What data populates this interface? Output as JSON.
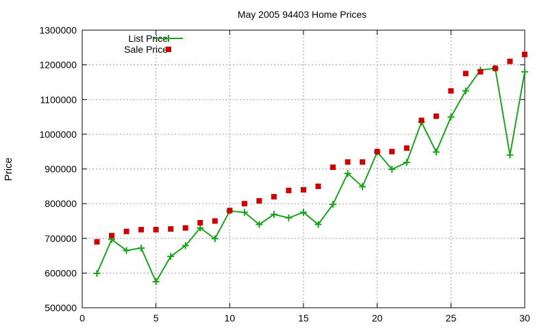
{
  "chart_data": {
    "type": "line",
    "title": "May 2005 94403 Home Prices",
    "ylabel": "Price",
    "xlabel": "",
    "xlim": [
      0,
      30
    ],
    "ylim": [
      500000,
      1300000
    ],
    "xticks": [
      0,
      5,
      10,
      15,
      20,
      25,
      30
    ],
    "yticks": [
      500000,
      600000,
      700000,
      800000,
      900000,
      1000000,
      1100000,
      1200000,
      1300000
    ],
    "grid": true,
    "legend_position": "top-left",
    "x": [
      1,
      2,
      3,
      4,
      5,
      6,
      7,
      8,
      9,
      10,
      11,
      12,
      13,
      14,
      15,
      16,
      17,
      18,
      19,
      20,
      21,
      22,
      23,
      24,
      25,
      26,
      27,
      28,
      29,
      30
    ],
    "series": [
      {
        "name": "List Price",
        "style": "linespoints",
        "marker": "plus",
        "color": "#1aa31a",
        "values": [
          599000,
          697000,
          665000,
          672000,
          575000,
          648000,
          679000,
          730000,
          699000,
          779000,
          775000,
          740000,
          769000,
          759000,
          775000,
          740000,
          798000,
          887000,
          849000,
          949000,
          899000,
          919000,
          1035000,
          949000,
          1050000,
          1125000,
          1185000,
          1190000,
          940000,
          1180000
        ]
      },
      {
        "name": "Sale Price",
        "style": "points",
        "marker": "square",
        "color": "#cc0000",
        "values": [
          690000,
          708000,
          720000,
          725000,
          725000,
          727000,
          730000,
          745000,
          750000,
          780000,
          800000,
          808000,
          820000,
          838000,
          840000,
          850000,
          905000,
          920000,
          920000,
          950000,
          950000,
          960000,
          1040000,
          1052000,
          1125000,
          1175000,
          1180000,
          1190000,
          1210000,
          1230000
        ]
      }
    ]
  }
}
